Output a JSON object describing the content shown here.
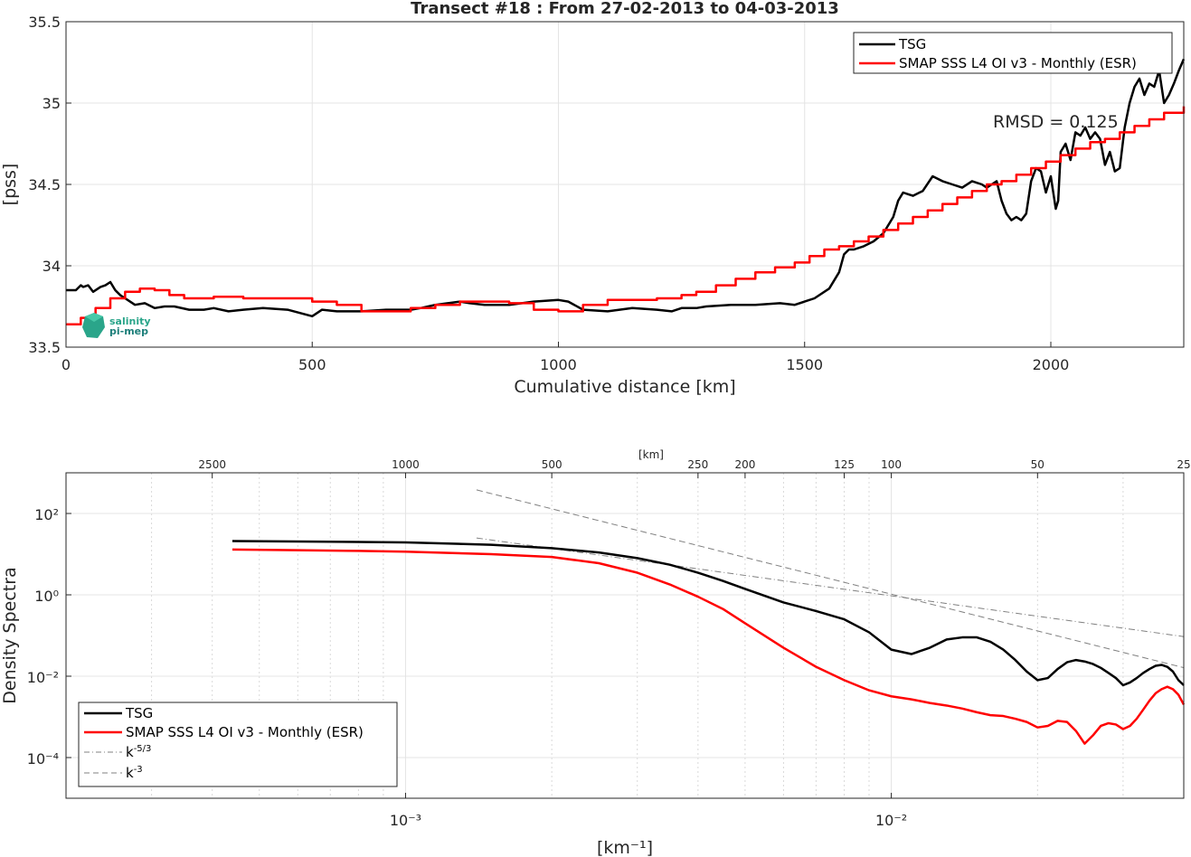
{
  "chart_data": [
    {
      "type": "line",
      "title": "Transect #18 : From 27-02-2013 to 04-03-2013",
      "xlabel": "Cumulative distance [km]",
      "ylabel": "[pss]",
      "xlim": [
        0,
        2270
      ],
      "ylim": [
        33.5,
        35.5
      ],
      "xticks": [
        "0",
        "500",
        "1000",
        "1500",
        "2000"
      ],
      "yticks": [
        "33.5",
        "34",
        "34.5",
        "35",
        "35.5"
      ],
      "grid": true,
      "legend_position": "top-right",
      "annotation": "RMSD = 0.125",
      "logo_text": [
        "salinity",
        "pi-mep"
      ],
      "series": [
        {
          "name": "TSG",
          "color": "#000000",
          "x": [
            0,
            20,
            30,
            35,
            45,
            55,
            70,
            80,
            90,
            100,
            110,
            120,
            130,
            140,
            160,
            180,
            200,
            220,
            250,
            280,
            300,
            330,
            360,
            400,
            450,
            500,
            520,
            550,
            600,
            650,
            700,
            720,
            750,
            800,
            820,
            850,
            900,
            950,
            1000,
            1020,
            1050,
            1100,
            1150,
            1200,
            1230,
            1250,
            1280,
            1300,
            1350,
            1400,
            1450,
            1480,
            1500,
            1520,
            1550,
            1570,
            1580,
            1590,
            1600,
            1620,
            1640,
            1660,
            1680,
            1690,
            1700,
            1710,
            1720,
            1740,
            1760,
            1780,
            1800,
            1820,
            1840,
            1860,
            1870,
            1880,
            1890,
            1900,
            1910,
            1920,
            1930,
            1940,
            1950,
            1960,
            1970,
            1980,
            1990,
            2000,
            2010,
            2015,
            2020,
            2030,
            2040,
            2050,
            2060,
            2070,
            2080,
            2090,
            2100,
            2110,
            2120,
            2130,
            2140,
            2150,
            2160,
            2170,
            2180,
            2190,
            2200,
            2210,
            2220,
            2230,
            2240,
            2250,
            2260,
            2270
          ],
          "y": [
            33.85,
            33.85,
            33.88,
            33.87,
            33.88,
            33.84,
            33.87,
            33.88,
            33.9,
            33.85,
            33.82,
            33.8,
            33.78,
            33.76,
            33.77,
            33.74,
            33.75,
            33.75,
            33.73,
            33.73,
            33.74,
            33.72,
            33.73,
            33.74,
            33.73,
            33.69,
            33.73,
            33.72,
            33.72,
            33.73,
            33.73,
            33.74,
            33.76,
            33.78,
            33.77,
            33.76,
            33.76,
            33.78,
            33.79,
            33.78,
            33.73,
            33.72,
            33.74,
            33.73,
            33.72,
            33.74,
            33.74,
            33.75,
            33.76,
            33.76,
            33.77,
            33.76,
            33.78,
            33.8,
            33.86,
            33.96,
            34.07,
            34.1,
            34.1,
            34.12,
            34.15,
            34.2,
            34.3,
            34.4,
            34.45,
            34.44,
            34.43,
            34.46,
            34.55,
            34.52,
            34.5,
            34.48,
            34.52,
            34.5,
            34.48,
            34.5,
            34.52,
            34.4,
            34.32,
            34.28,
            34.3,
            34.28,
            34.32,
            34.52,
            34.6,
            34.58,
            34.45,
            34.55,
            34.35,
            34.4,
            34.7,
            34.75,
            34.65,
            34.82,
            34.8,
            34.85,
            34.78,
            34.82,
            34.78,
            34.62,
            34.7,
            34.58,
            34.6,
            34.85,
            35.0,
            35.1,
            35.15,
            35.05,
            35.12,
            35.1,
            35.2,
            35.0,
            35.05,
            35.12,
            35.2,
            35.27
          ]
        },
        {
          "name": "SMAP SSS L4 OI v3 - Monthly (ESR)",
          "color": "#ff0000",
          "x": [
            0,
            30,
            60,
            90,
            120,
            150,
            180,
            210,
            240,
            270,
            300,
            360,
            400,
            460,
            500,
            550,
            600,
            650,
            700,
            750,
            800,
            850,
            900,
            950,
            1000,
            1050,
            1100,
            1150,
            1200,
            1250,
            1280,
            1320,
            1360,
            1400,
            1440,
            1480,
            1510,
            1540,
            1570,
            1600,
            1630,
            1660,
            1690,
            1720,
            1750,
            1780,
            1810,
            1840,
            1870,
            1900,
            1930,
            1960,
            1990,
            2020,
            2050,
            2080,
            2110,
            2140,
            2170,
            2200,
            2230,
            2270
          ],
          "y": [
            33.64,
            33.68,
            33.74,
            33.8,
            33.84,
            33.86,
            33.85,
            33.82,
            33.8,
            33.8,
            33.81,
            33.8,
            33.8,
            33.8,
            33.78,
            33.76,
            33.72,
            33.72,
            33.74,
            33.76,
            33.78,
            33.78,
            33.77,
            33.73,
            33.72,
            33.76,
            33.79,
            33.79,
            33.8,
            33.82,
            33.84,
            33.88,
            33.92,
            33.96,
            33.99,
            34.02,
            34.06,
            34.1,
            34.12,
            34.15,
            34.18,
            34.22,
            34.26,
            34.3,
            34.34,
            34.38,
            34.42,
            34.46,
            34.5,
            34.52,
            34.56,
            34.6,
            34.64,
            34.68,
            34.72,
            34.76,
            34.78,
            34.82,
            34.86,
            34.9,
            34.94,
            34.98
          ]
        }
      ]
    },
    {
      "type": "line",
      "xscale": "log",
      "yscale": "log",
      "xlabel": "[km⁻¹]",
      "ylabel": "Density Spectra",
      "top_axis_label": "[km]",
      "top_ticks": [
        "2500",
        "1000",
        "500",
        "250",
        "200",
        "125",
        "100",
        "50",
        "25"
      ],
      "xlim": [
        0.0002,
        0.04
      ],
      "ylim": [
        1e-05,
        1000
      ],
      "xticks": [
        "10⁻³",
        "10⁻²"
      ],
      "yticks": [
        "10⁻⁴",
        "10⁻²",
        "10⁰",
        "10²"
      ],
      "grid": true,
      "legend_position": "bottom-left",
      "series": [
        {
          "name": "TSG",
          "color": "#000000",
          "x": [
            0.00044,
            0.0006,
            0.0008,
            0.001,
            0.0015,
            0.002,
            0.0025,
            0.003,
            0.0035,
            0.004,
            0.0045,
            0.005,
            0.006,
            0.007,
            0.008,
            0.009,
            0.01,
            0.011,
            0.012,
            0.013,
            0.014,
            0.015,
            0.016,
            0.017,
            0.018,
            0.019,
            0.02,
            0.021,
            0.022,
            0.023,
            0.024,
            0.025,
            0.026,
            0.027,
            0.028,
            0.029,
            0.03,
            0.031,
            0.032,
            0.033,
            0.034,
            0.035,
            0.036,
            0.037,
            0.038,
            0.039,
            0.04
          ],
          "y": [
            21,
            20.5,
            20,
            19.5,
            17,
            14,
            11,
            8,
            5.5,
            3.5,
            2.2,
            1.4,
            0.65,
            0.4,
            0.25,
            0.12,
            0.045,
            0.035,
            0.05,
            0.08,
            0.09,
            0.09,
            0.07,
            0.045,
            0.025,
            0.013,
            0.008,
            0.009,
            0.015,
            0.022,
            0.025,
            0.023,
            0.02,
            0.016,
            0.012,
            0.009,
            0.006,
            0.007,
            0.009,
            0.012,
            0.015,
            0.018,
            0.019,
            0.017,
            0.013,
            0.008,
            0.006
          ]
        },
        {
          "name": "SMAP SSS L4 OI v3 - Monthly (ESR)",
          "color": "#ff0000",
          "x": [
            0.00044,
            0.0006,
            0.0008,
            0.001,
            0.0015,
            0.002,
            0.0025,
            0.003,
            0.0035,
            0.004,
            0.0045,
            0.005,
            0.006,
            0.007,
            0.008,
            0.009,
            0.01,
            0.011,
            0.012,
            0.013,
            0.014,
            0.015,
            0.016,
            0.017,
            0.018,
            0.019,
            0.02,
            0.021,
            0.022,
            0.023,
            0.024,
            0.025,
            0.026,
            0.027,
            0.028,
            0.029,
            0.03,
            0.031,
            0.032,
            0.033,
            0.034,
            0.035,
            0.036,
            0.037,
            0.038,
            0.039,
            0.04
          ],
          "y": [
            13,
            12.5,
            12,
            11.5,
            10,
            8.5,
            6,
            3.5,
            1.8,
            0.9,
            0.45,
            0.2,
            0.05,
            0.017,
            0.008,
            0.0045,
            0.0032,
            0.0027,
            0.0022,
            0.0019,
            0.0016,
            0.0013,
            0.0011,
            0.00105,
            0.0009,
            0.00075,
            0.00055,
            0.0006,
            0.0008,
            0.00075,
            0.00045,
            0.00022,
            0.00035,
            0.0006,
            0.0007,
            0.00065,
            0.0005,
            0.0006,
            0.0009,
            0.0015,
            0.0025,
            0.0038,
            0.0048,
            0.0055,
            0.0048,
            0.0035,
            0.002
          ]
        },
        {
          "name": "k⁻⁵ᐟ³",
          "color": "#808080",
          "dash": "dash-dot",
          "x": [
            0.0014,
            0.04
          ],
          "y": [
            25,
            0.094
          ]
        },
        {
          "name": "k⁻³",
          "color": "#808080",
          "dash": "dashed",
          "x": [
            0.0014,
            0.04
          ],
          "y": [
            380,
            0.0162
          ]
        }
      ],
      "legend_labels": {
        "tsg": "TSG",
        "smap": "SMAP SSS L4 OI v3 - Monthly (ESR)",
        "k53_base": "k",
        "k53_exp": "-5/3",
        "k3_base": "k",
        "k3_exp": "-3"
      }
    }
  ]
}
